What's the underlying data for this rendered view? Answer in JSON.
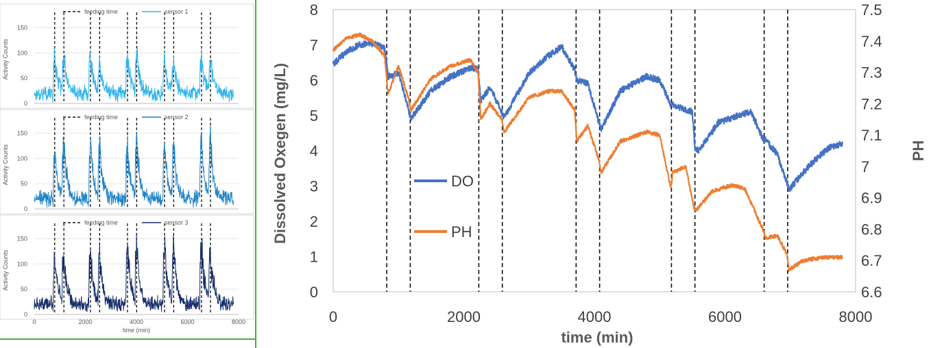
{
  "chart_data": [
    {
      "type": "line",
      "panel": "sensor-1",
      "ylabel": "Activity Counts",
      "xlabel": "",
      "xlim": [
        0,
        8000
      ],
      "ylim": [
        0,
        175
      ],
      "yticks": [
        "0",
        "50",
        "100",
        "150"
      ],
      "legend": [
        "feeding time",
        "sensor 1"
      ],
      "legend_position": "top-center",
      "color": "#2fb4ec",
      "feeding_times": [
        800,
        1160,
        2200,
        2560,
        3650,
        4010,
        5100,
        5460,
        6550,
        6900
      ],
      "baseline_range": [
        10,
        30
      ],
      "peak_values": [
        100,
        95,
        100,
        80,
        105,
        100,
        95,
        85,
        105,
        95
      ]
    },
    {
      "type": "line",
      "panel": "sensor-2",
      "ylabel": "Activity Counts",
      "xlabel": "",
      "xlim": [
        0,
        8000
      ],
      "ylim": [
        0,
        175
      ],
      "yticks": [
        "0",
        "50",
        "100",
        "150"
      ],
      "legend": [
        "feeding time",
        "sensor 2"
      ],
      "legend_position": "top-center",
      "color": "#1e82c8",
      "feeding_times": [
        800,
        1160,
        2200,
        2560,
        3650,
        4010,
        5100,
        5460,
        6550,
        6900
      ],
      "baseline_range": [
        10,
        30
      ],
      "peak_values": [
        125,
        150,
        135,
        145,
        135,
        150,
        140,
        145,
        150,
        145
      ]
    },
    {
      "type": "line",
      "panel": "sensor-3",
      "ylabel": "Activity Counts",
      "xlabel": "time (min)",
      "xlim": [
        0,
        8000
      ],
      "ylim": [
        0,
        175
      ],
      "yticks": [
        "0",
        "50",
        "100",
        "150"
      ],
      "xticks": [
        "0",
        "2000",
        "4000",
        "6000",
        "8000"
      ],
      "legend": [
        "feeding time",
        "sensor 3"
      ],
      "legend_position": "top-center",
      "color": "#152f6a",
      "feeding_times": [
        800,
        1160,
        2200,
        2560,
        3650,
        4010,
        5100,
        5460,
        6550,
        6900
      ],
      "baseline_range": [
        10,
        30
      ],
      "peak_values": [
        130,
        135,
        130,
        135,
        145,
        155,
        165,
        150,
        160,
        145
      ]
    },
    {
      "type": "line",
      "panel": "do-ph",
      "xlabel": "time (min)",
      "ylabel": "Dissolved Oxegen (mg/L)",
      "y2label": "PH",
      "xlim": [
        0,
        8000
      ],
      "ylim": [
        0,
        8
      ],
      "y2lim": [
        6.6,
        7.5
      ],
      "xticks": [
        "0",
        "2000",
        "4000",
        "6000",
        "8000"
      ],
      "yticks": [
        "0",
        "1",
        "2",
        "3",
        "4",
        "5",
        "6",
        "7",
        "8"
      ],
      "y2ticks": [
        "6.6",
        "6.7",
        "6.8",
        "6.9",
        "7",
        "7.1",
        "7.2",
        "7.3",
        "7.4",
        "7.5"
      ],
      "feeding_times": [
        820,
        1180,
        2230,
        2590,
        3720,
        4080,
        5180,
        5540,
        6600,
        6960
      ],
      "series": [
        {
          "name": "DO",
          "axis": "left",
          "color": "#4472c4",
          "x": [
            0,
            200,
            400,
            600,
            790,
            840,
            1000,
            1150,
            1190,
            1500,
            1800,
            2100,
            2220,
            2260,
            2400,
            2580,
            2620,
            3000,
            3300,
            3500,
            3700,
            3730,
            3900,
            4070,
            4100,
            4400,
            4800,
            5000,
            5170,
            5200,
            5500,
            5540,
            5600,
            5900,
            6200,
            6400,
            6590,
            6620,
            6800,
            6950,
            6980,
            7300,
            7600,
            7800
          ],
          "y": [
            6.45,
            6.8,
            7.0,
            7.05,
            6.9,
            6.1,
            6.2,
            5.2,
            4.9,
            5.7,
            6.1,
            6.35,
            6.3,
            5.4,
            5.8,
            5.1,
            4.95,
            6.2,
            6.7,
            6.95,
            6.3,
            6.0,
            5.9,
            4.8,
            4.6,
            5.7,
            6.1,
            6.0,
            5.3,
            5.3,
            5.1,
            4.1,
            4.0,
            4.8,
            5.0,
            5.1,
            4.3,
            4.3,
            3.9,
            3.1,
            2.9,
            3.6,
            4.1,
            4.2
          ]
        },
        {
          "name": "PH",
          "axis": "right",
          "color": "#ed7d31",
          "x": [
            0,
            200,
            400,
            600,
            790,
            840,
            1000,
            1150,
            1190,
            1500,
            1800,
            2100,
            2220,
            2260,
            2400,
            2580,
            2620,
            3000,
            3300,
            3500,
            3700,
            3730,
            3900,
            4070,
            4100,
            4400,
            4800,
            5000,
            5170,
            5200,
            5400,
            5520,
            5560,
            5800,
            6100,
            6300,
            6580,
            6620,
            6800,
            6950,
            6980,
            7200,
            7500,
            7800
          ],
          "y": [
            7.37,
            7.41,
            7.42,
            7.4,
            7.35,
            7.23,
            7.32,
            7.22,
            7.18,
            7.28,
            7.32,
            7.34,
            7.3,
            7.15,
            7.2,
            7.15,
            7.11,
            7.22,
            7.24,
            7.24,
            7.18,
            7.08,
            7.13,
            7.02,
            6.98,
            7.08,
            7.11,
            7.1,
            6.93,
            6.98,
            7.0,
            6.87,
            6.86,
            6.92,
            6.94,
            6.93,
            6.8,
            6.77,
            6.78,
            6.72,
            6.67,
            6.7,
            6.71,
            6.71
          ]
        }
      ],
      "legend": [
        "DO",
        "PH"
      ],
      "legend_position": "left-center"
    }
  ]
}
